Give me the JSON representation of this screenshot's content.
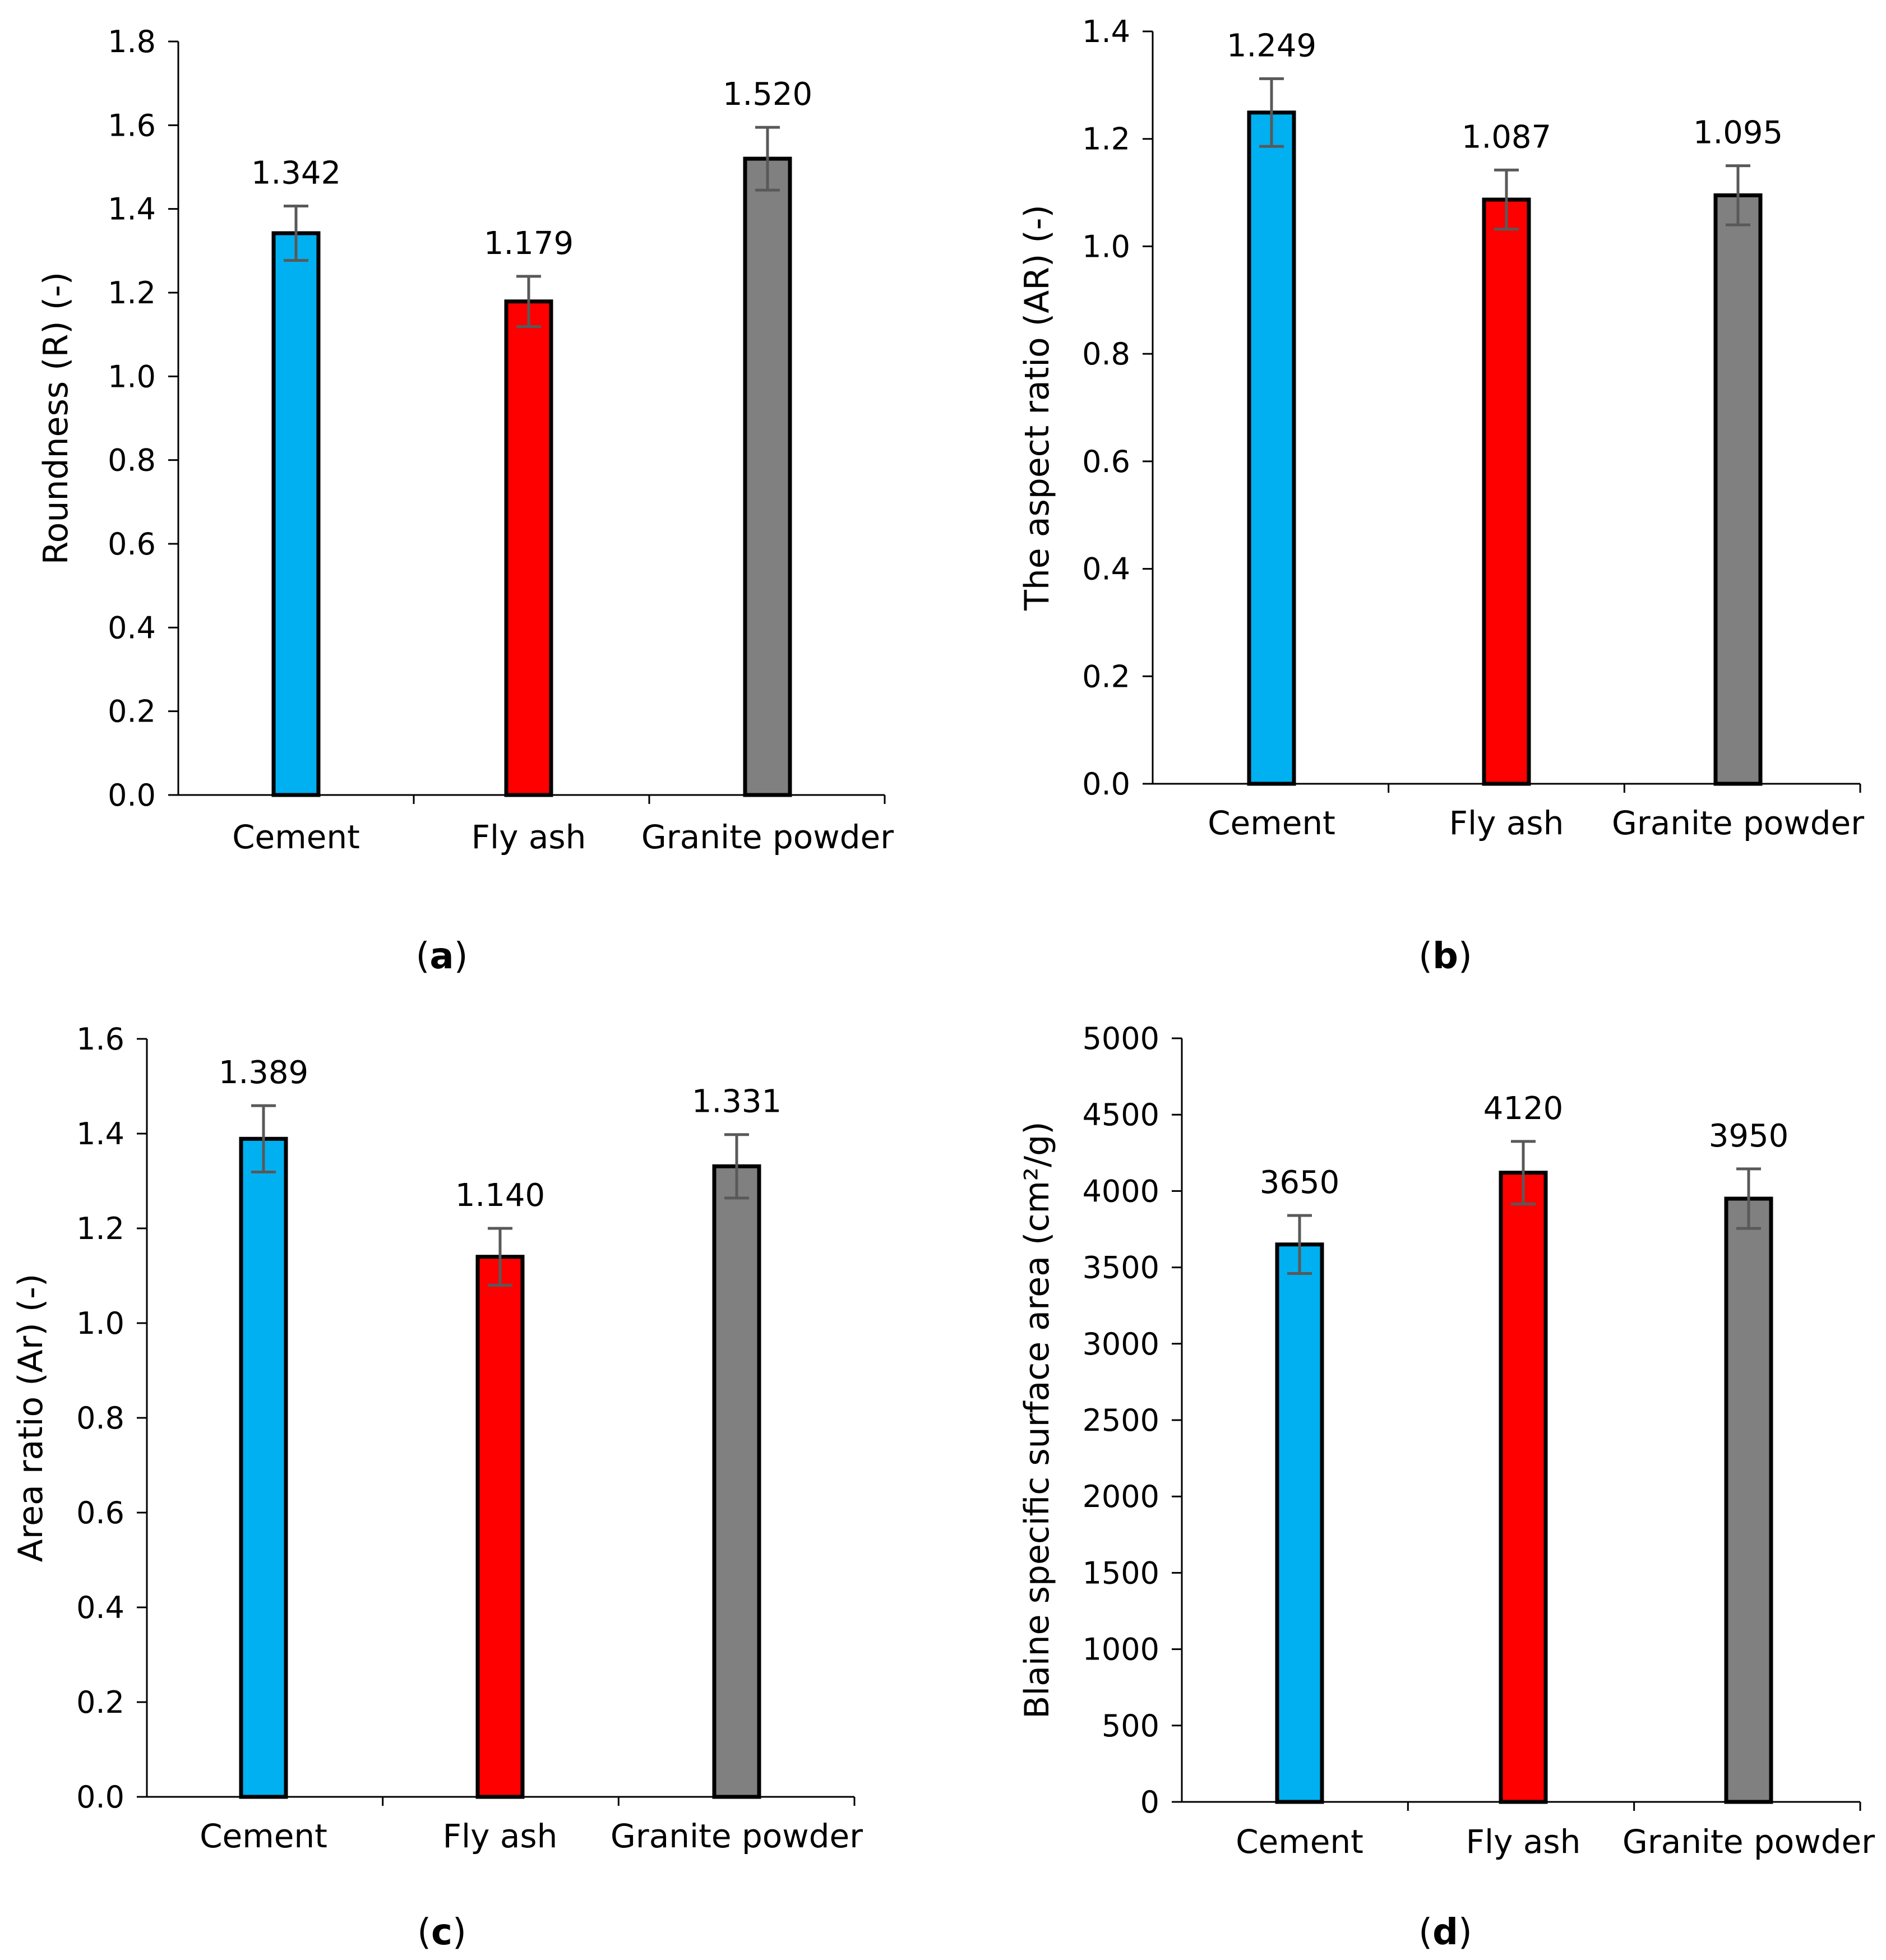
{
  "figure": {
    "panel_labels": [
      "(a)",
      "(b)",
      "(c)",
      "(d)"
    ]
  },
  "chart_data": [
    {
      "type": "bar",
      "panel": "(a)",
      "title": "",
      "xlabel": "",
      "ylabel": "Roundness (R) (-)",
      "categories": [
        "Cement",
        "Fly ash",
        "Granite powder"
      ],
      "values": [
        1.342,
        1.179,
        1.52
      ],
      "value_labels": [
        "1.342",
        "1.179",
        "1.520"
      ],
      "error": [
        0.065,
        0.06,
        0.075
      ],
      "ylim": [
        0,
        1.8
      ],
      "yticks": [
        0.0,
        0.2,
        0.4,
        0.6,
        0.8,
        1.0,
        1.2,
        1.4,
        1.6,
        1.8
      ],
      "ytick_labels": [
        "0.0",
        "0.2",
        "0.4",
        "0.6",
        "0.8",
        "1.0",
        "1.2",
        "1.4",
        "1.6",
        "1.8"
      ],
      "colors": [
        "#00B0F0",
        "#FF0000",
        "#808080"
      ],
      "grid": false
    },
    {
      "type": "bar",
      "panel": "(b)",
      "title": "",
      "xlabel": "",
      "ylabel": "The aspect ratio (AR) (-)",
      "categories": [
        "Cement",
        "Fly ash",
        "Granite powder"
      ],
      "values": [
        1.249,
        1.087,
        1.095
      ],
      "value_labels": [
        "1.249",
        "1.087",
        "1.095"
      ],
      "error": [
        0.063,
        0.055,
        0.055
      ],
      "ylim": [
        0,
        1.4
      ],
      "yticks": [
        0.0,
        0.2,
        0.4,
        0.6,
        0.8,
        1.0,
        1.2,
        1.4
      ],
      "ytick_labels": [
        "0.0",
        "0.2",
        "0.4",
        "0.6",
        "0.8",
        "1.0",
        "1.2",
        "1.4"
      ],
      "colors": [
        "#00B0F0",
        "#FF0000",
        "#808080"
      ],
      "grid": false
    },
    {
      "type": "bar",
      "panel": "(c)",
      "title": "",
      "xlabel": "",
      "ylabel": "Area ratio (Ar) (-)",
      "categories": [
        "Cement",
        "Fly ash",
        "Granite powder"
      ],
      "values": [
        1.389,
        1.14,
        1.331
      ],
      "value_labels": [
        "1.389",
        "1.140",
        "1.331"
      ],
      "error": [
        0.07,
        0.06,
        0.067
      ],
      "ylim": [
        0,
        1.6
      ],
      "yticks": [
        0.0,
        0.2,
        0.4,
        0.6,
        0.8,
        1.0,
        1.2,
        1.4,
        1.6
      ],
      "ytick_labels": [
        "0.0",
        "0.2",
        "0.4",
        "0.6",
        "0.8",
        "1.0",
        "1.2",
        "1.4",
        "1.6"
      ],
      "colors": [
        "#00B0F0",
        "#FF0000",
        "#808080"
      ],
      "grid": false
    },
    {
      "type": "bar",
      "panel": "(d)",
      "title": "",
      "xlabel": "",
      "ylabel": "Blaine specific surface area (cm²/g)",
      "categories": [
        "Cement",
        "Fly ash",
        "Granite powder"
      ],
      "values": [
        3650,
        4120,
        3950
      ],
      "value_labels": [
        "3650",
        "4120",
        "3950"
      ],
      "error": [
        190,
        205,
        195
      ],
      "ylim": [
        0,
        5000
      ],
      "yticks": [
        0,
        500,
        1000,
        1500,
        2000,
        2500,
        3000,
        3500,
        4000,
        4500,
        5000
      ],
      "ytick_labels": [
        "0",
        "500",
        "1000",
        "1500",
        "2000",
        "2500",
        "3000",
        "3500",
        "4000",
        "4500",
        "5000"
      ],
      "colors": [
        "#00B0F0",
        "#FF0000",
        "#808080"
      ],
      "grid": false
    }
  ]
}
